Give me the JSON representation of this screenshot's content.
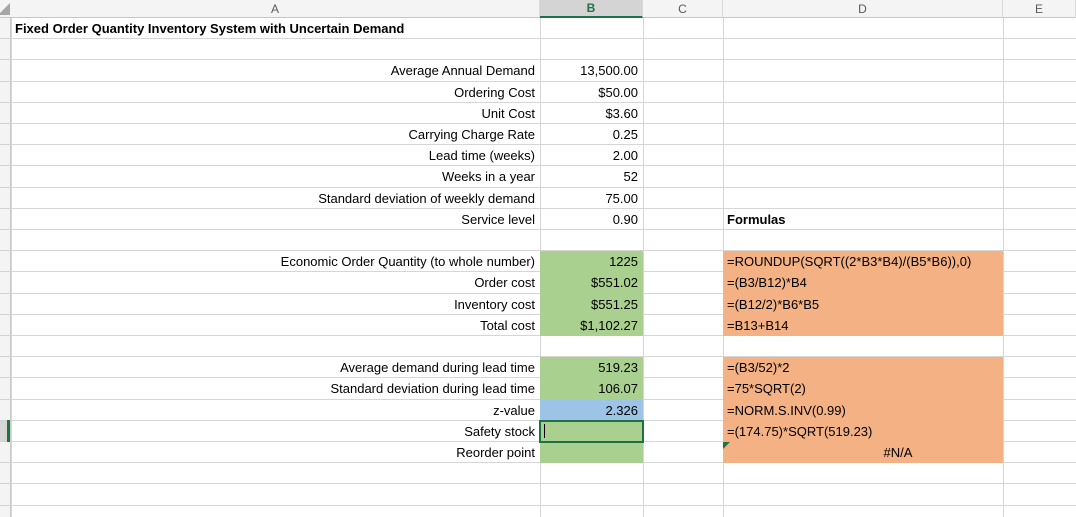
{
  "sheet": {
    "column_headers": [
      "A",
      "B",
      "C",
      "D",
      "E"
    ],
    "selected_column": "B",
    "colors": {
      "green_fill": "#A9D08E",
      "blue_fill": "#9DC3E6",
      "orange_fill": "#F4B183",
      "selection_green": "#1E7145"
    },
    "rows": [
      {
        "r": 1,
        "label": "Fixed Order Quantity Inventory System with Uncertain Demand",
        "label_bold": true,
        "label_align": "left"
      },
      {
        "r": 2
      },
      {
        "r": 3,
        "label": "Average Annual Demand",
        "value": "13,500.00"
      },
      {
        "r": 4,
        "label": "Ordering Cost",
        "value": "$50.00"
      },
      {
        "r": 5,
        "label": "Unit Cost",
        "value": "$3.60"
      },
      {
        "r": 6,
        "label": "Carrying Charge Rate",
        "value": "0.25"
      },
      {
        "r": 7,
        "label": "Lead time (weeks)",
        "value": "2.00"
      },
      {
        "r": 8,
        "label": "Weeks in a year",
        "value": "52"
      },
      {
        "r": 9,
        "label": "Standard deviation of weekly demand",
        "value": "75.00"
      },
      {
        "r": 10,
        "label": "Service level",
        "value": "0.90",
        "formula": "Formulas",
        "formula_bold": true
      },
      {
        "r": 11
      },
      {
        "r": 12,
        "label": "Economic Order Quantity (to whole number)",
        "value": "1225",
        "value_fill": "green",
        "formula": "=ROUNDUP(SQRT((2*B3*B4)/(B5*B6)),0)",
        "formula_fill": "orange"
      },
      {
        "r": 13,
        "label": "Order cost",
        "value": "$551.02",
        "value_fill": "green",
        "formula": "=(B3/B12)*B4",
        "formula_fill": "orange"
      },
      {
        "r": 14,
        "label": "Inventory cost",
        "value": "$551.25",
        "value_fill": "green",
        "formula": "=(B12/2)*B6*B5",
        "formula_fill": "orange"
      },
      {
        "r": 15,
        "label": "Total cost",
        "value": "$1,102.27",
        "value_fill": "green",
        "formula": "=B13+B14",
        "formula_fill": "orange"
      },
      {
        "r": 16
      },
      {
        "r": 17,
        "label": "Average demand during lead time",
        "value": "519.23",
        "value_fill": "green",
        "formula": "=(B3/52)*2",
        "formula_fill": "orange"
      },
      {
        "r": 18,
        "label": "Standard deviation during lead time",
        "value": "106.07",
        "value_fill": "green",
        "formula": "=75*SQRT(2)",
        "formula_fill": "orange"
      },
      {
        "r": 19,
        "label": "z-value",
        "value": "2.326",
        "value_fill": "blue",
        "formula": "=NORM.S.INV(0.99)",
        "formula_fill": "orange"
      },
      {
        "r": 20,
        "label": "Safety stock",
        "value": "",
        "value_fill": "green",
        "active": true,
        "editing": true,
        "formula": "=(174.75)*SQRT(519.23)",
        "formula_fill": "orange"
      },
      {
        "r": 21,
        "label": "Reorder point",
        "value": "",
        "value_fill": "green",
        "formula": "#N/A",
        "formula_fill": "orange",
        "formula_align": "center",
        "error_indicator": true
      },
      {
        "r": 22
      },
      {
        "r": 23
      },
      {
        "r": 24
      }
    ]
  }
}
